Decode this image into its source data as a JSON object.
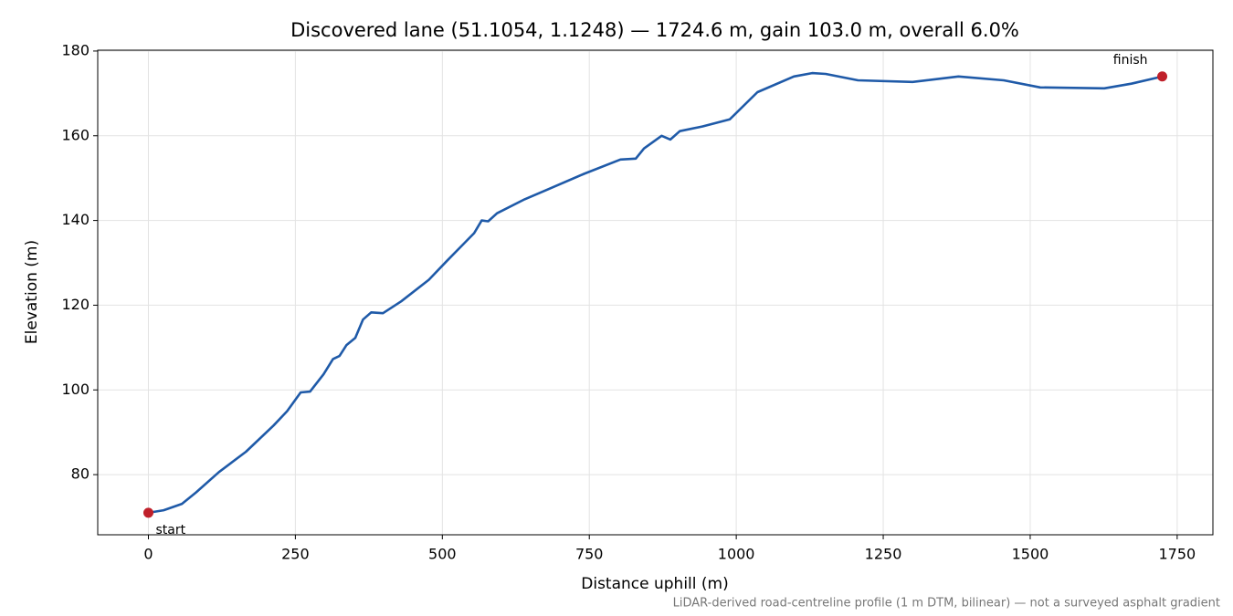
{
  "chart_data": {
    "type": "line",
    "title": "Discovered lane (51.1054, 1.1248) — 1724.6 m, gain 103.0 m, overall 6.0%",
    "xlabel": "Distance uphill (m)",
    "ylabel": "Elevation (m)",
    "footnote": "LiDAR-derived road-centreline profile (1 m DTM, bilinear) — not a surveyed asphalt gradient",
    "annotations": [
      "start",
      "finish"
    ],
    "color": "#1f5aa8",
    "marker_color": "#c0202a",
    "x": [
      0,
      26,
      57,
      81,
      120,
      166,
      213,
      236,
      259,
      275,
      298,
      314,
      325,
      337,
      352,
      365,
      379,
      399,
      430,
      477,
      508,
      554,
      567,
      578,
      593,
      640,
      679,
      741,
      803,
      829,
      843,
      873,
      888,
      904,
      943,
      989,
      1036,
      1098,
      1129,
      1152,
      1207,
      1300,
      1378,
      1455,
      1517,
      1626,
      1672,
      1724.6
    ],
    "values": [
      71.0,
      71.6,
      73.1,
      75.8,
      80.6,
      85.4,
      91.6,
      95.0,
      99.4,
      99.6,
      103.7,
      107.3,
      108.0,
      110.6,
      112.3,
      116.6,
      118.3,
      118.1,
      120.9,
      126.0,
      130.5,
      137.0,
      140.0,
      139.8,
      141.7,
      145.0,
      147.3,
      151.0,
      154.4,
      154.6,
      157.0,
      160.0,
      159.1,
      161.1,
      162.2,
      163.9,
      170.3,
      174.0,
      174.8,
      174.6,
      173.1,
      172.7,
      174.0,
      173.1,
      171.4,
      171.2,
      172.3,
      174.0
    ],
    "xlim": [
      -86.2,
      1810.8
    ],
    "ylim": [
      65.8,
      180.2
    ],
    "xticks": [
      0,
      250,
      500,
      750,
      1000,
      1250,
      1500,
      1750
    ],
    "yticks": [
      80,
      100,
      120,
      140,
      160,
      180
    ],
    "grid": true
  }
}
